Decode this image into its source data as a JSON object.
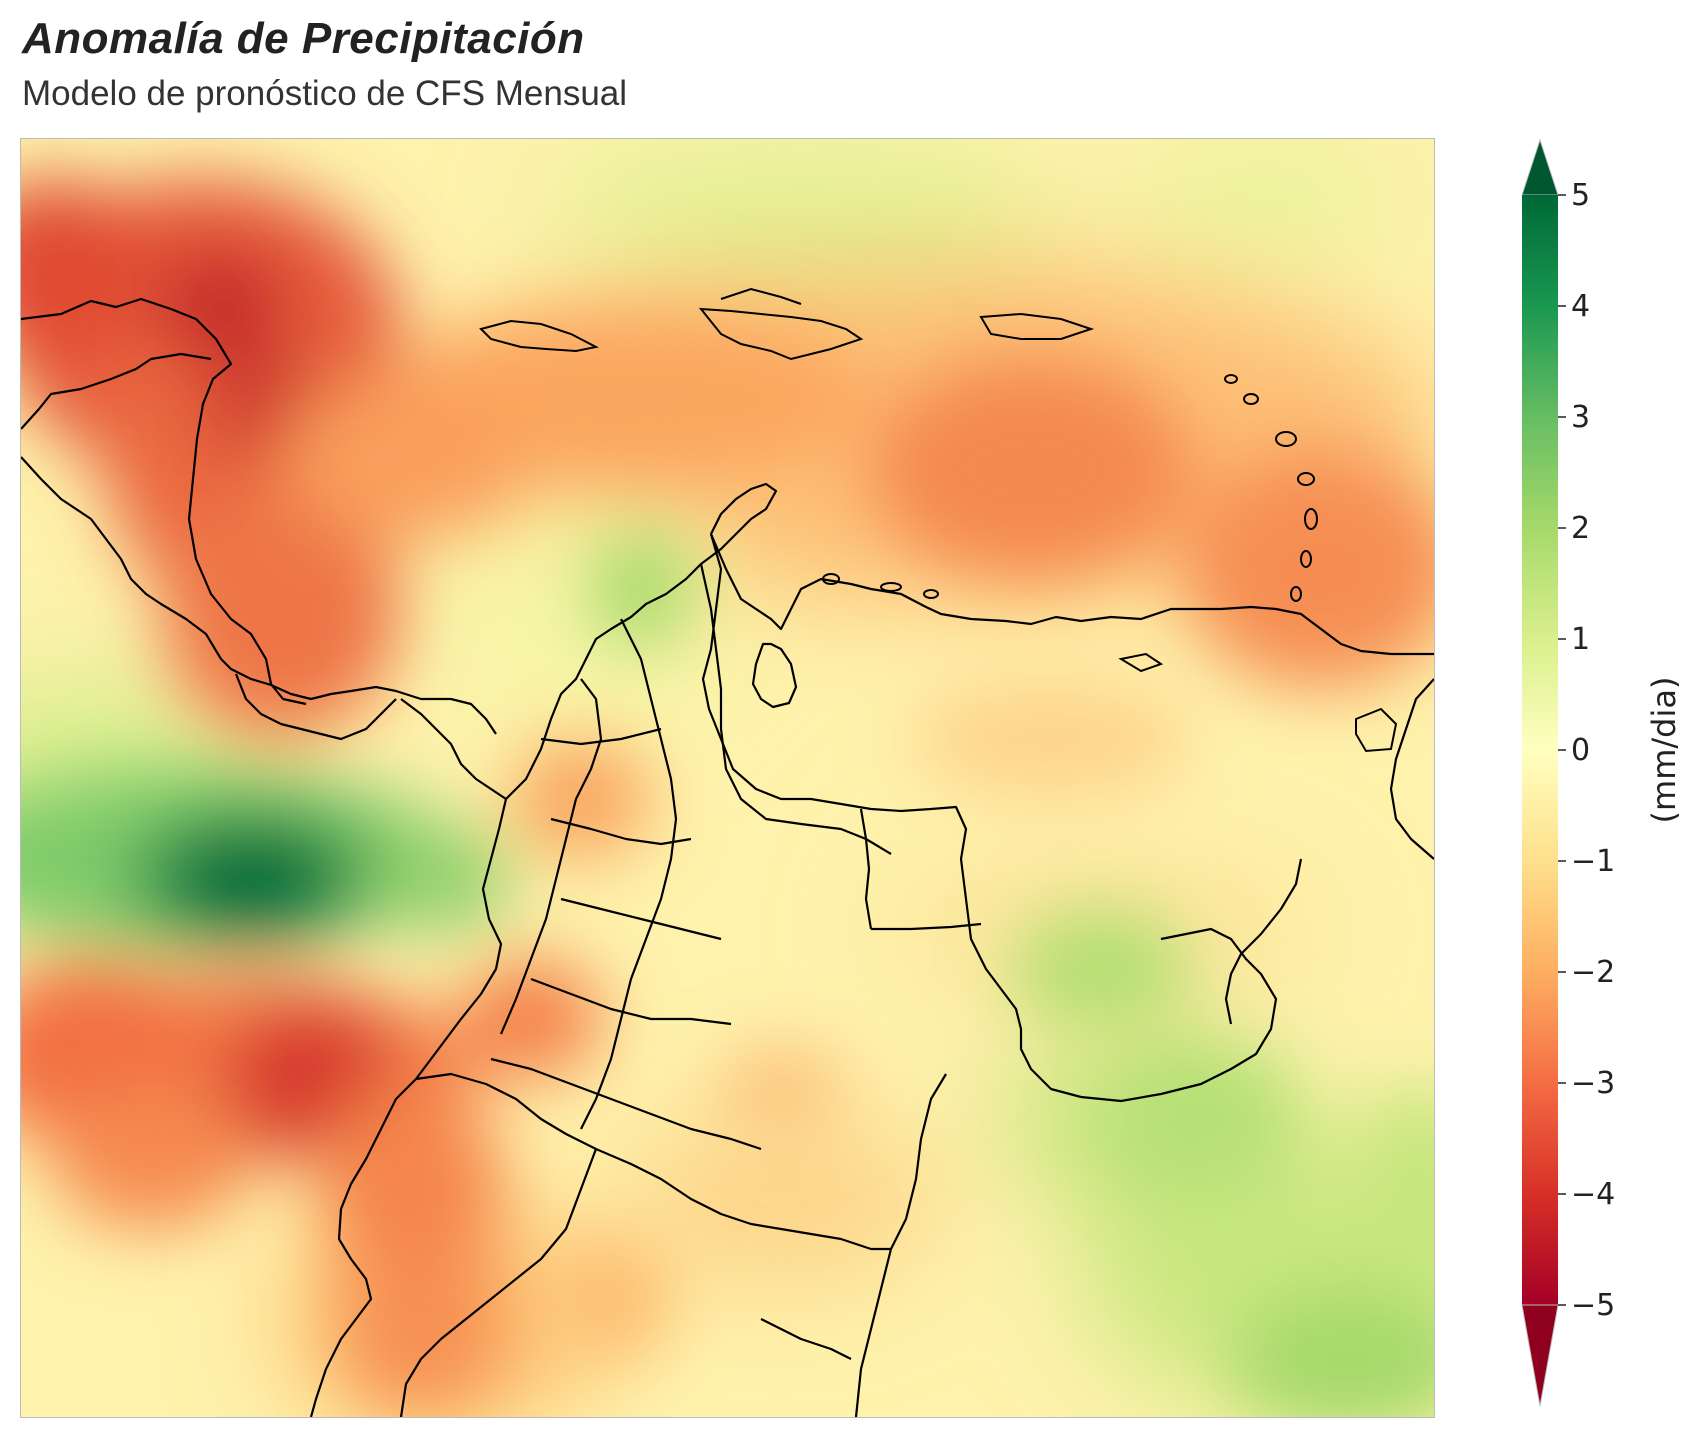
{
  "header": {
    "title": "Anomalía de Precipitación",
    "subtitle": "Modelo de pronóstico de CFS Mensual"
  },
  "map": {
    "variable": "precipitation-anomaly",
    "region": "Caribbean and northern South America",
    "boundaries": "coastlines-and-administrative-borders"
  },
  "colorbar": {
    "label": "(mm/dia)",
    "ticks": [
      "5",
      "4",
      "3",
      "2",
      "1",
      "0",
      "−1",
      "−2",
      "−3",
      "−4",
      "−5"
    ],
    "min": -5,
    "max": 5,
    "extend": "both",
    "colormap": "RdYlGn",
    "colors": {
      "top": "#006837",
      "green": "#66bd63",
      "light_green": "#d9ef8b",
      "neutral": "#ffffbf",
      "orange": "#fdae61",
      "red": "#f46d43",
      "bottom": "#a50026"
    }
  }
}
